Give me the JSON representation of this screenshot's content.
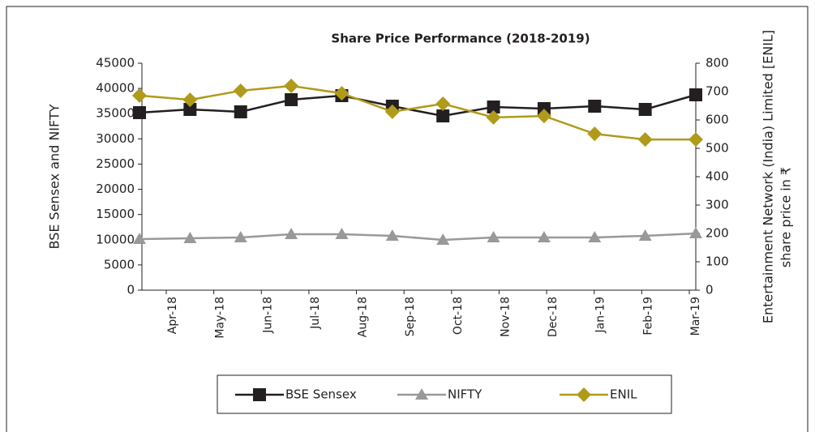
{
  "chart_data": {
    "type": "line",
    "title": "Share Price Performance (2018-2019)",
    "ylabel": "BSE Sensex and NIFTY",
    "y2label": [
      "Entertainment Network (India) Limited [ENIL]",
      "share price in ₹"
    ],
    "categories": [
      "Apr-18",
      "May-18",
      "Jun-18",
      "Jul-18",
      "Aug-18",
      "Sep-18",
      "Oct-18",
      "Nov-18",
      "Dec-18",
      "Jan-19",
      "Feb-19",
      "Mar-19"
    ],
    "series": [
      {
        "name": "BSE Sensex",
        "color": "#231f20",
        "marker": "square",
        "values": [
          35200,
          35840,
          35360,
          37770,
          38570,
          36480,
          34550,
          36320,
          36000,
          36480,
          35840,
          38730
        ]
      },
      {
        "name": "NIFTY",
        "color": "#999999",
        "marker": "triangle",
        "values": [
          10130,
          10290,
          10450,
          11090,
          11090,
          10770,
          9960,
          10450,
          10450,
          10450,
          10770,
          11250
        ]
      },
      {
        "name": "ENIL",
        "color": "#b09a1a",
        "marker": "diamond",
        "axis": "y2",
        "values": [
          686,
          671,
          703,
          720,
          694,
          629,
          657,
          609,
          614,
          551,
          531,
          531
        ]
      }
    ],
    "ylim": [
      0,
      45000
    ],
    "yticks": [
      0,
      5000,
      10000,
      15000,
      20000,
      25000,
      30000,
      35000,
      40000,
      45000
    ],
    "y2lim": [
      0,
      800
    ],
    "y2ticks": [
      0,
      100,
      200,
      300,
      400,
      500,
      600,
      700,
      800
    ],
    "grid": false,
    "legend": "bottom"
  }
}
